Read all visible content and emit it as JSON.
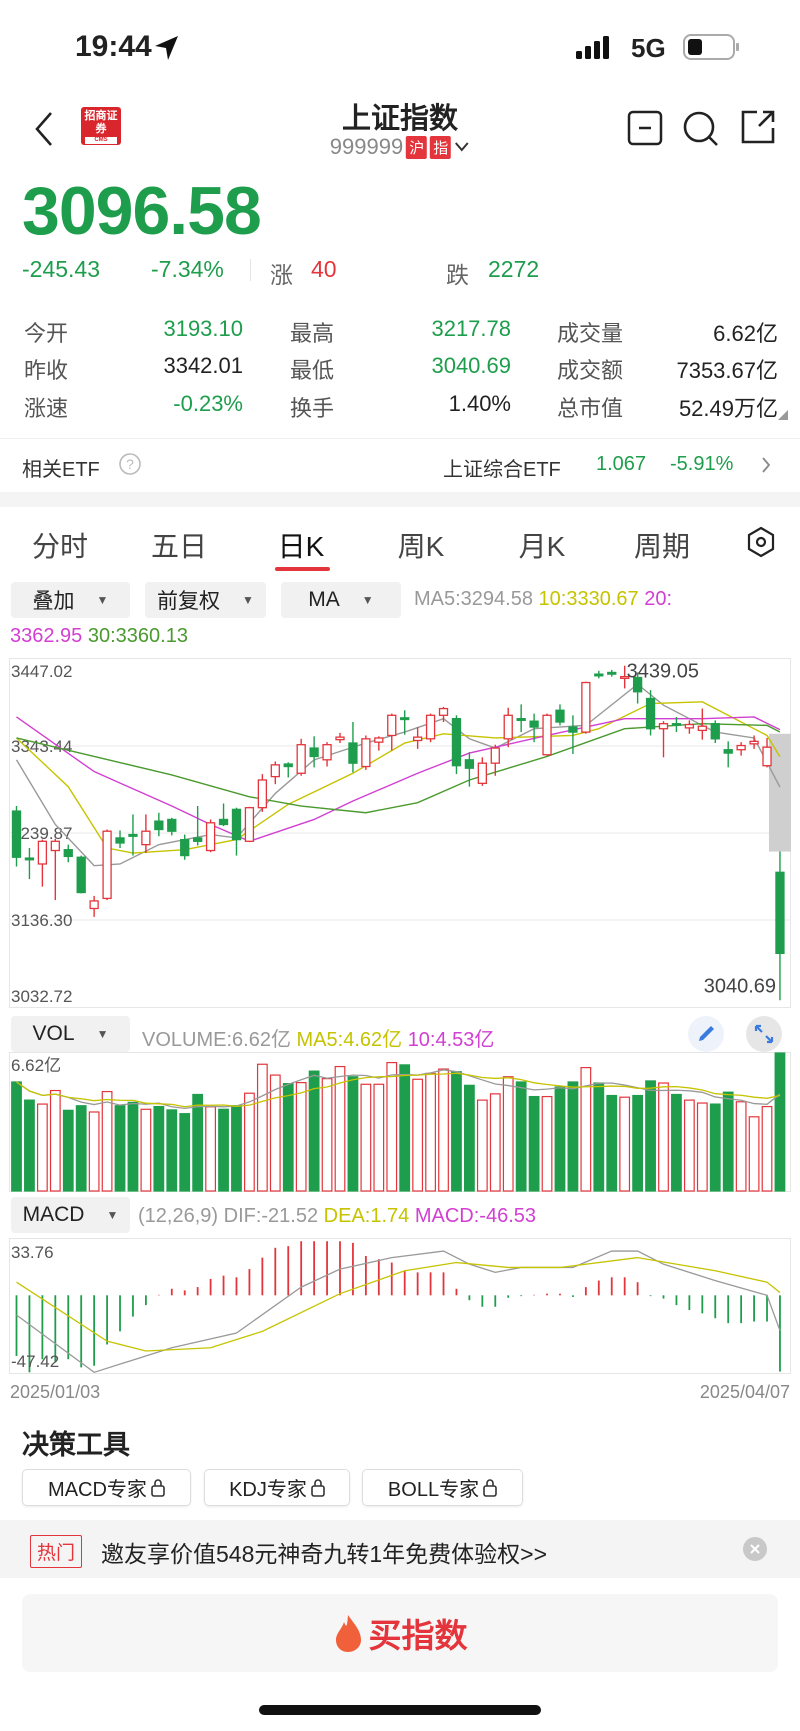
{
  "status": {
    "time": "19:44",
    "network": "5G"
  },
  "header": {
    "title": "上证指数",
    "code": "999999",
    "tags": [
      "沪",
      "指"
    ],
    "logo_text": "招商证券",
    "logo_sub": "CMS"
  },
  "quote": {
    "price": "3096.58",
    "change": "-245.43",
    "change_pct": "-7.34%",
    "up_label": "涨",
    "up_count": "40",
    "down_label": "跌",
    "down_count": "2272"
  },
  "stats": [
    [
      {
        "label": "今开",
        "value": "3193.10",
        "color": "green"
      },
      {
        "label": "最高",
        "value": "3217.78",
        "color": "green"
      },
      {
        "label": "成交量",
        "value": "6.62亿",
        "color": "black"
      }
    ],
    [
      {
        "label": "昨收",
        "value": "3342.01",
        "color": "black"
      },
      {
        "label": "最低",
        "value": "3040.69",
        "color": "green"
      },
      {
        "label": "成交额",
        "value": "7353.67亿",
        "color": "black"
      }
    ],
    [
      {
        "label": "涨速",
        "value": "-0.23%",
        "color": "green"
      },
      {
        "label": "换手",
        "value": "1.40%",
        "color": "black"
      },
      {
        "label": "总市值",
        "value": "52.49万亿",
        "color": "black"
      }
    ]
  ],
  "etf": {
    "label": "相关ETF",
    "name": "上证综合ETF",
    "price": "1.067",
    "change": "-5.91%"
  },
  "tabs": [
    "分时",
    "五日",
    "日K",
    "周K",
    "月K",
    "周期"
  ],
  "active_tab": "日K",
  "controls": {
    "overlay": "叠加",
    "adjust": "前复权",
    "indicator": "MA"
  },
  "ma_legend": {
    "ma5": "MA5:3294.58",
    "ma10": "10:3330.67",
    "ma20_label": "20:",
    "ma20_value": "3362.95",
    "ma30": "30:3360.13"
  },
  "vol_legend": {
    "selector": "VOL",
    "volume": "VOLUME:6.62亿",
    "ma5": "MA5:4.62亿",
    "ma10": "10:4.53亿"
  },
  "macd_legend": {
    "selector": "MACD",
    "params": "(12,26,9)",
    "dif": "DIF:-21.52",
    "dea": "DEA:1.74",
    "macd": "MACD:-46.53"
  },
  "colors": {
    "up": "#e3353b",
    "down": "#1e9e4c",
    "ma5": "#999999",
    "ma10": "#c6c300",
    "ma20": "#d23fd2",
    "ma30": "#4a9a2e"
  },
  "chart_data": [
    {
      "type": "candlestick",
      "y_ticks": [
        "3447.02",
        "3343.44",
        "3239.87",
        "3136.30",
        "3032.72"
      ],
      "ylim": [
        3032.72,
        3447.02
      ],
      "x_labels": [
        "2025/01/03",
        "2025/04/07"
      ],
      "high_label": "3439.05",
      "low_label": "3040.69",
      "ohlc": [
        [
          3266,
          3272,
          3200,
          3211
        ],
        [
          3210,
          3222,
          3185,
          3208
        ],
        [
          3203,
          3232,
          3176,
          3230
        ],
        [
          3219,
          3233,
          3160,
          3230
        ],
        [
          3220,
          3226,
          3205,
          3212
        ],
        [
          3211,
          3213,
          3168,
          3169
        ],
        [
          3150,
          3165,
          3140,
          3159
        ],
        [
          3162,
          3244,
          3160,
          3242
        ],
        [
          3234,
          3243,
          3222,
          3228
        ],
        [
          3238,
          3262,
          3213,
          3236
        ],
        [
          3226,
          3262,
          3216,
          3242
        ],
        [
          3254,
          3264,
          3236,
          3244
        ],
        [
          3256,
          3258,
          3237,
          3242
        ],
        [
          3232,
          3238,
          3208,
          3213
        ],
        [
          3234,
          3272,
          3225,
          3230
        ],
        [
          3219,
          3256,
          3217,
          3252
        ],
        [
          3256,
          3275,
          3248,
          3250
        ],
        [
          3268,
          3270,
          3213,
          3232
        ],
        [
          3230,
          3271,
          3229,
          3270
        ],
        [
          3270,
          3310,
          3265,
          3303
        ],
        [
          3307,
          3325,
          3298,
          3321
        ],
        [
          3322,
          3324,
          3306,
          3319
        ],
        [
          3311,
          3352,
          3308,
          3345
        ],
        [
          3341,
          3355,
          3318,
          3331
        ],
        [
          3327,
          3348,
          3319,
          3345
        ],
        [
          3351,
          3359,
          3347,
          3354
        ],
        [
          3347,
          3372,
          3312,
          3323
        ],
        [
          3319,
          3356,
          3315,
          3352
        ],
        [
          3348,
          3355,
          3338,
          3353
        ],
        [
          3356,
          3382,
          3338,
          3380
        ],
        [
          3377,
          3386,
          3357,
          3375
        ],
        [
          3350,
          3366,
          3340,
          3354
        ],
        [
          3352,
          3382,
          3348,
          3380
        ],
        [
          3380,
          3390,
          3372,
          3388
        ],
        [
          3376,
          3380,
          3310,
          3320
        ],
        [
          3327,
          3336,
          3295,
          3317
        ],
        [
          3299,
          3330,
          3296,
          3323
        ],
        [
          3323,
          3345,
          3308,
          3341
        ],
        [
          3352,
          3389,
          3342,
          3380
        ],
        [
          3376,
          3393,
          3360,
          3374
        ],
        [
          3373,
          3382,
          3348,
          3366
        ],
        [
          3333,
          3382,
          3332,
          3380
        ],
        [
          3386,
          3393,
          3368,
          3372
        ],
        [
          3366,
          3380,
          3334,
          3360
        ],
        [
          3360,
          3420,
          3358,
          3419
        ],
        [
          3429,
          3433,
          3424,
          3427
        ],
        [
          3431,
          3434,
          3426,
          3429
        ],
        [
          3424,
          3439.05,
          3412,
          3426
        ],
        [
          3425,
          3431,
          3394,
          3408
        ],
        [
          3400,
          3410,
          3356,
          3364
        ],
        [
          3364,
          3373,
          3330,
          3370
        ],
        [
          3370,
          3378,
          3360,
          3369
        ],
        [
          3365,
          3374,
          3358,
          3369
        ],
        [
          3362,
          3388,
          3351,
          3367
        ],
        [
          3370,
          3374,
          3347,
          3352
        ],
        [
          3339,
          3349,
          3318,
          3335
        ],
        [
          3339,
          3348,
          3332,
          3344
        ],
        [
          3346,
          3356,
          3340,
          3349
        ],
        [
          3320,
          3353,
          3318,
          3342.01
        ],
        [
          3193.1,
          3217.78,
          3040.69,
          3096.58
        ]
      ],
      "ma_series": [
        {
          "name": "MA5",
          "points": [
            [
              1,
              3327
            ],
            [
              4,
              3250
            ],
            [
              7,
              3201
            ],
            [
              9,
              3203
            ],
            [
              12,
              3226
            ],
            [
              16,
              3238
            ],
            [
              18,
              3234
            ],
            [
              21,
              3287
            ],
            [
              24,
              3327
            ],
            [
              28,
              3347
            ],
            [
              31,
              3360
            ],
            [
              34,
              3376
            ],
            [
              36,
              3352
            ],
            [
              38,
              3341
            ],
            [
              41,
              3364
            ],
            [
              45,
              3368
            ],
            [
              49,
              3417
            ],
            [
              51,
              3392
            ],
            [
              55,
              3360
            ],
            [
              58,
              3353
            ],
            [
              60,
              3294.58
            ]
          ]
        },
        {
          "name": "MA10",
          "points": [
            [
              1,
              3353
            ],
            [
              5,
              3295
            ],
            [
              8,
              3222
            ],
            [
              10,
              3216
            ],
            [
              14,
              3220
            ],
            [
              18,
              3232
            ],
            [
              22,
              3274
            ],
            [
              27,
              3311
            ],
            [
              31,
              3347
            ],
            [
              34,
              3358
            ],
            [
              38,
              3353
            ],
            [
              44,
              3356
            ],
            [
              46,
              3364
            ],
            [
              50,
              3394
            ],
            [
              54,
              3396
            ],
            [
              57,
              3372
            ],
            [
              59,
              3356
            ],
            [
              60,
              3330.67
            ]
          ]
        },
        {
          "name": "MA20",
          "points": [
            [
              1,
              3378
            ],
            [
              7,
              3313
            ],
            [
              13,
              3272
            ],
            [
              16,
              3250
            ],
            [
              19,
              3230
            ],
            [
              24,
              3256
            ],
            [
              27,
              3278
            ],
            [
              32,
              3311
            ],
            [
              36,
              3335
            ],
            [
              42,
              3356
            ],
            [
              48,
              3376
            ],
            [
              54,
              3376
            ],
            [
              58,
              3378
            ],
            [
              60,
              3362.95
            ]
          ]
        },
        {
          "name": "MA30",
          "points": [
            [
              1,
              3353
            ],
            [
              7,
              3331
            ],
            [
              13,
              3309
            ],
            [
              19,
              3283
            ],
            [
              23,
              3272
            ],
            [
              28,
              3264
            ],
            [
              32,
              3276
            ],
            [
              36,
              3303
            ],
            [
              42,
              3331
            ],
            [
              48,
              3364
            ],
            [
              54,
              3370
            ],
            [
              59,
              3368
            ],
            [
              60,
              3360.13
            ]
          ]
        }
      ]
    },
    {
      "type": "bar",
      "name": "VOLUME",
      "unit": "亿",
      "top_label": "6.62亿",
      "ylim": [
        0,
        6.62
      ],
      "values": [
        5.23,
        4.36,
        4.17,
        4.82,
        3.87,
        4.09,
        3.79,
        4.77,
        4.09,
        4.25,
        3.92,
        4.05,
        3.89,
        3.71,
        4.63,
        4.04,
        3.92,
        4.09,
        4.69,
        6.08,
        5.56,
        5.15,
        5.2,
        5.75,
        5.39,
        5.97,
        5.48,
        5.12,
        5.12,
        6.16,
        6.05,
        5.36,
        5.64,
        5.85,
        5.72,
        5.07,
        4.36,
        4.66,
        5.48,
        5.23,
        4.53,
        4.53,
        4.99,
        5.23,
        5.92,
        5.18,
        4.58,
        4.5,
        4.58,
        5.28,
        5.18,
        4.63,
        4.36,
        4.22,
        4.17,
        4.74,
        4.28,
        3.56,
        4.05,
        6.62
      ]
    },
    {
      "type": "bar",
      "name": "MACD",
      "y_ticks": [
        "33.76",
        "-47.42"
      ],
      "ylim": [
        -47.42,
        33.76
      ],
      "macd": [
        -37,
        -47,
        -39,
        -41,
        -39,
        -44,
        -43,
        -30,
        -22,
        -13,
        -6,
        0.3,
        4,
        3,
        5,
        10,
        12,
        11,
        16,
        23,
        29,
        30,
        33,
        33,
        33,
        33,
        32,
        24,
        22,
        20,
        15,
        14,
        14,
        14,
        4,
        -3,
        -7,
        -7,
        -1.5,
        -0.5,
        0.3,
        1,
        1,
        -1,
        5,
        9,
        11,
        11,
        8,
        -0.5,
        -2,
        -6,
        -9,
        -11,
        -14,
        -17,
        -17,
        -16,
        -16,
        -46.53
      ],
      "dif": [
        [
          1,
          -12
        ],
        [
          7,
          -47
        ],
        [
          13,
          -32
        ],
        [
          18,
          -23
        ],
        [
          23,
          5
        ],
        [
          26,
          16
        ],
        [
          30,
          23
        ],
        [
          34,
          27
        ],
        [
          36,
          19
        ],
        [
          38,
          14
        ],
        [
          40,
          17
        ],
        [
          44,
          17
        ],
        [
          47,
          27
        ],
        [
          49,
          27
        ],
        [
          51,
          19
        ],
        [
          55,
          9
        ],
        [
          59,
          0
        ],
        [
          60,
          -21.52
        ]
      ],
      "dea": [
        [
          1,
          8
        ],
        [
          8,
          -28
        ],
        [
          11,
          -34
        ],
        [
          16,
          -32
        ],
        [
          20,
          -22
        ],
        [
          26,
          1
        ],
        [
          31,
          15
        ],
        [
          35,
          20
        ],
        [
          39,
          17
        ],
        [
          43,
          17
        ],
        [
          49,
          23
        ],
        [
          55,
          15
        ],
        [
          59,
          8
        ],
        [
          60,
          1.74
        ]
      ]
    }
  ],
  "tools": {
    "title": "决策工具",
    "items": [
      "MACD专家",
      "KDJ专家",
      "BOLL专家"
    ]
  },
  "ad": {
    "tag": "热门",
    "text": "邀友享价值548元神奇九转1年免费体验权>>"
  },
  "buy": {
    "label": "买指数"
  }
}
